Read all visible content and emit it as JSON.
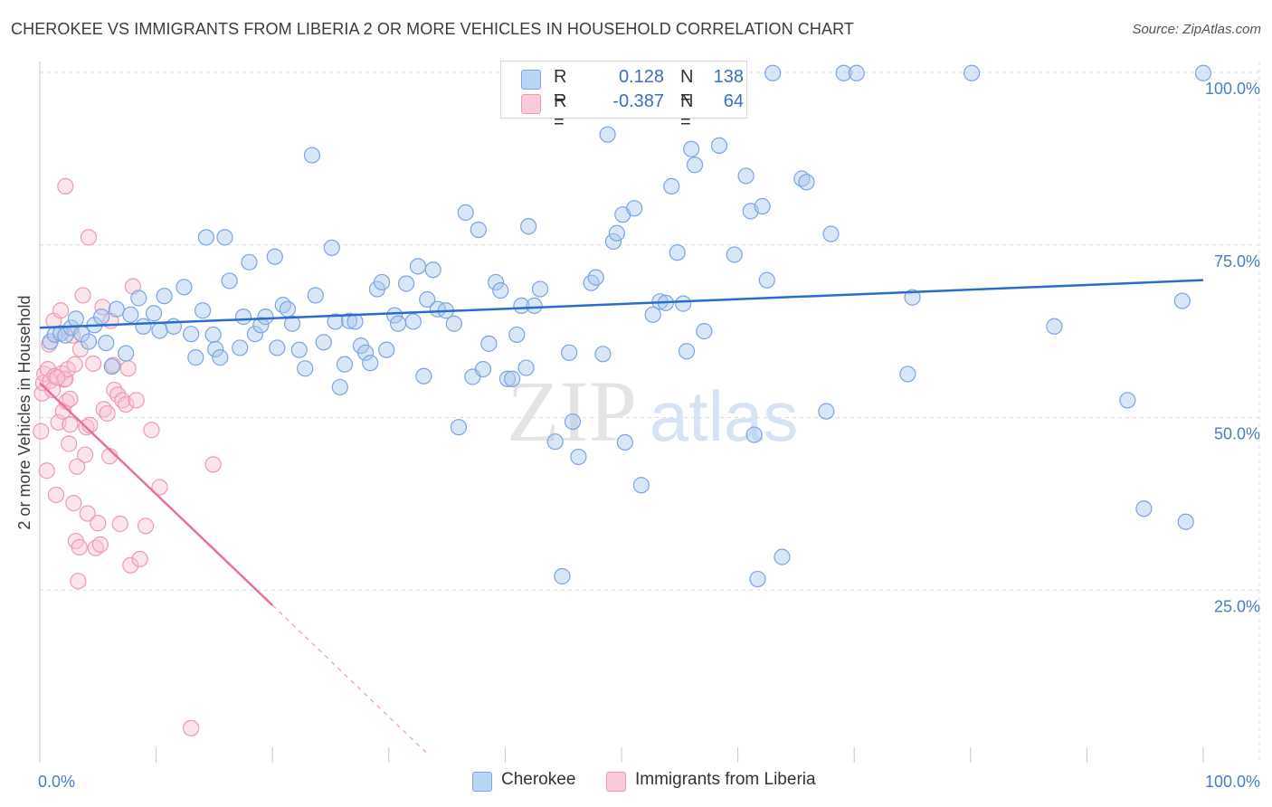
{
  "title": "CHEROKEE VS IMMIGRANTS FROM LIBERIA 2 OR MORE VEHICLES IN HOUSEHOLD CORRELATION CHART",
  "source": "Source: ZipAtlas.com",
  "watermark": {
    "zip": "ZIP",
    "atlas": "atlas"
  },
  "legend": {
    "rows": [
      {
        "r_label": "R =",
        "r_value": "0.128",
        "n_label": "N =",
        "n_value": "138"
      },
      {
        "r_label": "R =",
        "r_value": "-0.387",
        "n_label": "N =",
        "n_value": "64"
      }
    ]
  },
  "bottom_legend": [
    "Cherokee",
    "Immigrants from Liberia"
  ],
  "colors": {
    "blue_fill": "#aac8f0",
    "blue_stroke": "#7aa5e0",
    "blue_line": "#2a6dc9",
    "pink_fill": "#f8c3d3",
    "pink_stroke": "#ee9ab4",
    "pink_line": "#e8709a",
    "grid": "#dcdcdc",
    "tick_text": "#4a7cc9"
  },
  "chart_data": {
    "type": "scatter",
    "title": "CHEROKEE VS IMMIGRANTS FROM LIBERIA 2 OR MORE VEHICLES IN HOUSEHOLD CORRELATION CHART",
    "xlabel": "",
    "ylabel": "2 or more Vehicles in Household",
    "xlim": [
      0,
      100
    ],
    "ylim": [
      0,
      100
    ],
    "x_tick_labels": [
      "0.0%",
      "100.0%"
    ],
    "y_ticks": [
      25,
      50,
      75,
      100
    ],
    "y_tick_labels": [
      "25.0%",
      "50.0%",
      "75.0%",
      "100.0%"
    ],
    "grid": true,
    "legend_placement": "top-center",
    "series": [
      {
        "name": "Cherokee",
        "r": 0.128,
        "n": 138,
        "trend": {
          "x": [
            0,
            100
          ],
          "y": [
            63.0,
            69.9
          ]
        },
        "points": [
          [
            0.9,
            61.0
          ],
          [
            1.3,
            62.0
          ],
          [
            1.8,
            62.2
          ],
          [
            2.2,
            61.9
          ],
          [
            2.7,
            63.0
          ],
          [
            3.1,
            64.3
          ],
          [
            3.6,
            62.1
          ],
          [
            4.2,
            61.0
          ],
          [
            4.7,
            63.4
          ],
          [
            5.3,
            64.6
          ],
          [
            5.7,
            60.8
          ],
          [
            6.2,
            57.4
          ],
          [
            6.6,
            65.7
          ],
          [
            7.4,
            59.3
          ],
          [
            7.8,
            64.9
          ],
          [
            8.5,
            67.3
          ],
          [
            8.9,
            63.2
          ],
          [
            9.8,
            65.1
          ],
          [
            10.3,
            62.6
          ],
          [
            10.7,
            67.6
          ],
          [
            11.5,
            63.2
          ],
          [
            12.4,
            68.9
          ],
          [
            13.0,
            62.1
          ],
          [
            13.4,
            58.7
          ],
          [
            14.0,
            65.5
          ],
          [
            14.3,
            76.1
          ],
          [
            14.9,
            62.0
          ],
          [
            15.1,
            59.9
          ],
          [
            15.5,
            58.7
          ],
          [
            15.9,
            76.1
          ],
          [
            16.3,
            69.8
          ],
          [
            17.2,
            60.1
          ],
          [
            17.5,
            64.6
          ],
          [
            18.0,
            72.5
          ],
          [
            18.5,
            62.1
          ],
          [
            19.0,
            63.4
          ],
          [
            19.4,
            64.6
          ],
          [
            20.2,
            73.3
          ],
          [
            20.4,
            60.1
          ],
          [
            20.9,
            66.3
          ],
          [
            21.3,
            65.7
          ],
          [
            21.7,
            63.6
          ],
          [
            22.3,
            59.8
          ],
          [
            22.8,
            57.1
          ],
          [
            23.4,
            88.0
          ],
          [
            23.7,
            67.7
          ],
          [
            24.4,
            60.9
          ],
          [
            25.1,
            74.6
          ],
          [
            25.4,
            63.9
          ],
          [
            25.8,
            54.4
          ],
          [
            26.2,
            57.7
          ],
          [
            26.6,
            64.0
          ],
          [
            27.1,
            63.9
          ],
          [
            27.6,
            60.4
          ],
          [
            28.0,
            59.4
          ],
          [
            28.4,
            57.9
          ],
          [
            29.0,
            68.6
          ],
          [
            29.4,
            69.6
          ],
          [
            29.8,
            59.8
          ],
          [
            30.5,
            64.8
          ],
          [
            30.8,
            63.6
          ],
          [
            31.5,
            69.4
          ],
          [
            32.1,
            63.9
          ],
          [
            32.5,
            71.9
          ],
          [
            33.0,
            56.0
          ],
          [
            33.3,
            67.1
          ],
          [
            33.8,
            71.4
          ],
          [
            34.2,
            65.7
          ],
          [
            34.9,
            65.5
          ],
          [
            35.6,
            63.6
          ],
          [
            36.0,
            48.6
          ],
          [
            36.6,
            79.7
          ],
          [
            37.2,
            55.9
          ],
          [
            37.7,
            77.2
          ],
          [
            38.1,
            57.0
          ],
          [
            38.6,
            60.7
          ],
          [
            39.2,
            69.6
          ],
          [
            39.6,
            68.4
          ],
          [
            40.2,
            55.6
          ],
          [
            40.6,
            55.6
          ],
          [
            41.0,
            62.0
          ],
          [
            41.4,
            66.2
          ],
          [
            41.8,
            57.2
          ],
          [
            42.0,
            77.7
          ],
          [
            42.5,
            66.2
          ],
          [
            43.0,
            68.6
          ],
          [
            44.3,
            46.5
          ],
          [
            44.9,
            27.0
          ],
          [
            45.5,
            59.4
          ],
          [
            45.8,
            49.4
          ],
          [
            46.3,
            44.3
          ],
          [
            47.4,
            69.5
          ],
          [
            47.8,
            70.3
          ],
          [
            48.4,
            59.2
          ],
          [
            48.8,
            91.0
          ],
          [
            49.3,
            75.5
          ],
          [
            49.6,
            76.7
          ],
          [
            50.1,
            79.4
          ],
          [
            50.3,
            46.4
          ],
          [
            51.1,
            80.3
          ],
          [
            51.7,
            40.2
          ],
          [
            52.7,
            64.9
          ],
          [
            53.3,
            66.8
          ],
          [
            53.8,
            66.6
          ],
          [
            54.3,
            83.5
          ],
          [
            54.8,
            73.9
          ],
          [
            55.3,
            66.5
          ],
          [
            55.6,
            59.6
          ],
          [
            56.0,
            88.9
          ],
          [
            56.3,
            86.6
          ],
          [
            57.1,
            62.5
          ],
          [
            58.4,
            89.4
          ],
          [
            59.7,
            73.6
          ],
          [
            60.7,
            85.0
          ],
          [
            61.1,
            79.9
          ],
          [
            61.4,
            47.5
          ],
          [
            61.7,
            26.6
          ],
          [
            62.1,
            80.6
          ],
          [
            62.5,
            69.9
          ],
          [
            63.0,
            99.9
          ],
          [
            63.8,
            29.8
          ],
          [
            65.5,
            84.6
          ],
          [
            65.9,
            84.1
          ],
          [
            67.6,
            50.9
          ],
          [
            68.0,
            76.6
          ],
          [
            69.1,
            99.9
          ],
          [
            70.2,
            99.9
          ],
          [
            74.6,
            56.3
          ],
          [
            75.0,
            67.4
          ],
          [
            80.1,
            99.9
          ],
          [
            87.2,
            63.2
          ],
          [
            93.5,
            52.5
          ],
          [
            94.9,
            36.8
          ],
          [
            98.2,
            66.9
          ],
          [
            98.5,
            34.9
          ],
          [
            100.0,
            99.9
          ]
        ]
      },
      {
        "name": "Immigrants from Liberia",
        "r": -0.387,
        "n": 64,
        "trend": {
          "x": [
            0,
            20
          ],
          "y": [
            55.0,
            22.8
          ]
        },
        "trend_extension": {
          "x": [
            20,
            33.5
          ],
          "y": [
            22.8,
            1.0
          ]
        },
        "points": [
          [
            0.1,
            48.0
          ],
          [
            0.2,
            53.5
          ],
          [
            0.3,
            55.0
          ],
          [
            0.4,
            56.3
          ],
          [
            0.6,
            42.3
          ],
          [
            0.7,
            57.0
          ],
          [
            0.8,
            60.6
          ],
          [
            0.9,
            55.3
          ],
          [
            1.1,
            54.0
          ],
          [
            1.2,
            64.0
          ],
          [
            1.3,
            56.0
          ],
          [
            1.4,
            38.8
          ],
          [
            1.6,
            49.3
          ],
          [
            1.8,
            65.5
          ],
          [
            1.9,
            56.4
          ],
          [
            2.0,
            50.9
          ],
          [
            2.1,
            55.5
          ],
          [
            2.2,
            55.6
          ],
          [
            2.3,
            52.3
          ],
          [
            2.4,
            57.0
          ],
          [
            2.5,
            46.2
          ],
          [
            2.6,
            49.0
          ],
          [
            2.8,
            61.9
          ],
          [
            3.0,
            57.7
          ],
          [
            3.2,
            42.9
          ],
          [
            2.2,
            83.5
          ],
          [
            2.6,
            52.7
          ],
          [
            2.9,
            37.6
          ],
          [
            3.1,
            32.1
          ],
          [
            3.3,
            26.3
          ],
          [
            3.5,
            59.9
          ],
          [
            3.7,
            67.7
          ],
          [
            3.9,
            44.6
          ],
          [
            4.0,
            48.6
          ],
          [
            4.1,
            36.1
          ],
          [
            4.2,
            76.1
          ],
          [
            4.3,
            48.9
          ],
          [
            4.6,
            57.8
          ],
          [
            4.8,
            31.1
          ],
          [
            5.0,
            34.7
          ],
          [
            5.2,
            31.6
          ],
          [
            5.4,
            66.0
          ],
          [
            5.5,
            51.2
          ],
          [
            5.8,
            50.6
          ],
          [
            6.0,
            44.4
          ],
          [
            6.1,
            64.0
          ],
          [
            6.3,
            57.6
          ],
          [
            6.4,
            54.0
          ],
          [
            6.7,
            53.3
          ],
          [
            6.9,
            34.6
          ],
          [
            7.1,
            52.5
          ],
          [
            7.4,
            51.9
          ],
          [
            7.6,
            57.1
          ],
          [
            7.8,
            28.6
          ],
          [
            8.0,
            69.0
          ],
          [
            8.3,
            52.5
          ],
          [
            8.6,
            29.5
          ],
          [
            9.1,
            34.3
          ],
          [
            9.6,
            48.2
          ],
          [
            10.3,
            39.9
          ],
          [
            13.0,
            5.0
          ],
          [
            14.9,
            43.2
          ],
          [
            3.4,
            31.2
          ],
          [
            1.5,
            55.8
          ]
        ]
      }
    ]
  }
}
